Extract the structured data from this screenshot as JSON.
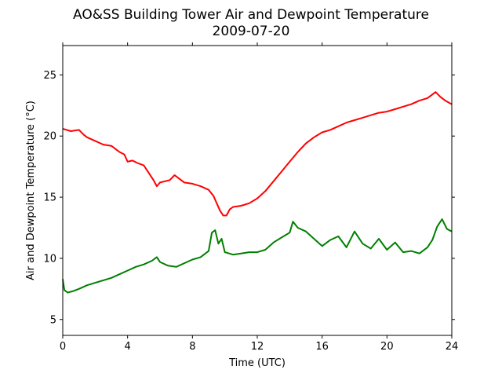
{
  "chart_data": {
    "type": "line",
    "title": "AO&SS Building Tower Air and Dewpoint Temperature",
    "subtitle": "2009-07-20",
    "xlabel": "Time (UTC)",
    "ylabel": "Air and Dewpoint Temperature (°C)",
    "xlim": [
      0,
      24
    ],
    "ylim": [
      3.7,
      27.4
    ],
    "xticks": [
      0,
      4,
      8,
      12,
      16,
      20,
      24
    ],
    "yticks": [
      5,
      10,
      15,
      20,
      25
    ],
    "grid": false,
    "legend": false,
    "series": [
      {
        "color": "#ff0000",
        "x": [
          0,
          0.5,
          1.0,
          1.3,
          1.5,
          2.0,
          2.5,
          3.0,
          3.5,
          3.8,
          4.0,
          4.3,
          4.6,
          5.0,
          5.3,
          5.6,
          5.8,
          6.0,
          6.3,
          6.6,
          6.9,
          7.2,
          7.5,
          8.0,
          8.5,
          9.0,
          9.3,
          9.5,
          9.7,
          9.9,
          10.1,
          10.3,
          10.5,
          11.0,
          11.5,
          12.0,
          12.5,
          13.0,
          13.5,
          14.0,
          14.5,
          15.0,
          15.5,
          16.0,
          16.5,
          17.0,
          17.5,
          18.0,
          18.5,
          19.0,
          19.5,
          20.0,
          20.5,
          21.0,
          21.5,
          22.0,
          22.5,
          22.8,
          23.0,
          23.3,
          23.6,
          24.0
        ],
        "y": [
          20.6,
          20.4,
          20.5,
          20.1,
          19.9,
          19.6,
          19.3,
          19.2,
          18.7,
          18.5,
          17.9,
          18.0,
          17.8,
          17.6,
          17.0,
          16.4,
          15.9,
          16.2,
          16.3,
          16.4,
          16.8,
          16.5,
          16.2,
          16.1,
          15.9,
          15.6,
          15.1,
          14.5,
          13.9,
          13.5,
          13.5,
          14.0,
          14.2,
          14.3,
          14.5,
          14.9,
          15.5,
          16.3,
          17.1,
          17.9,
          18.7,
          19.4,
          19.9,
          20.3,
          20.5,
          20.8,
          21.1,
          21.3,
          21.5,
          21.7,
          21.9,
          22.0,
          22.2,
          22.4,
          22.6,
          22.9,
          23.1,
          23.4,
          23.6,
          23.2,
          22.9,
          22.6
        ]
      },
      {
        "color": "#008000",
        "x": [
          0,
          0.1,
          0.3,
          0.6,
          1.0,
          1.5,
          2.0,
          2.5,
          3.0,
          3.5,
          4.0,
          4.5,
          5.0,
          5.5,
          5.8,
          6.0,
          6.5,
          7.0,
          7.5,
          8.0,
          8.5,
          9.0,
          9.2,
          9.4,
          9.6,
          9.8,
          10.0,
          10.5,
          11.0,
          11.5,
          12.0,
          12.5,
          13.0,
          13.5,
          14.0,
          14.2,
          14.5,
          15.0,
          15.5,
          16.0,
          16.5,
          17.0,
          17.5,
          18.0,
          18.5,
          19.0,
          19.5,
          20.0,
          20.5,
          21.0,
          21.5,
          22.0,
          22.5,
          22.8,
          23.1,
          23.4,
          23.7,
          24.0
        ],
        "y": [
          8.3,
          7.4,
          7.2,
          7.3,
          7.5,
          7.8,
          8.0,
          8.2,
          8.4,
          8.7,
          9.0,
          9.3,
          9.5,
          9.8,
          10.1,
          9.7,
          9.4,
          9.3,
          9.6,
          9.9,
          10.1,
          10.6,
          12.1,
          12.3,
          11.2,
          11.6,
          10.5,
          10.3,
          10.4,
          10.5,
          10.5,
          10.7,
          11.3,
          11.7,
          12.1,
          13.0,
          12.5,
          12.2,
          11.6,
          11.0,
          11.5,
          11.8,
          10.9,
          12.2,
          11.2,
          10.8,
          11.6,
          10.7,
          11.3,
          10.5,
          10.6,
          10.4,
          10.9,
          11.5,
          12.6,
          13.2,
          12.4,
          12.2
        ]
      }
    ]
  }
}
